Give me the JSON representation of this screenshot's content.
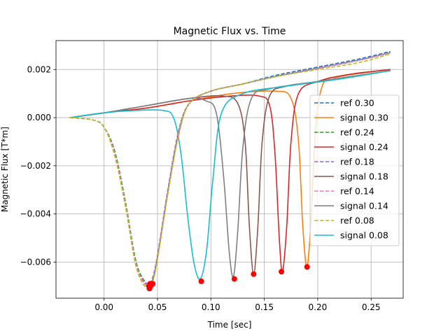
{
  "chart_data": {
    "type": "line",
    "title": "Magnetic Flux vs. Time",
    "xlabel": "Time [sec]",
    "ylabel": "Magnetic Flux [T*m]",
    "xlim": [
      -0.045,
      0.28
    ],
    "ylim": [
      -0.0075,
      0.0032
    ],
    "xticks": [
      0.0,
      0.05,
      0.1,
      0.15,
      0.2,
      0.25
    ],
    "xtick_labels": [
      "0.00",
      "0.05",
      "0.10",
      "0.15",
      "0.20",
      "0.25"
    ],
    "yticks": [
      -0.006,
      -0.004,
      -0.002,
      0.0,
      0.002
    ],
    "ytick_labels": [
      "−0.006",
      "−0.004",
      "−0.002",
      "0.000",
      "0.002"
    ],
    "grid": true,
    "legend_position": "center-right",
    "colors": {
      "ref_0.30": "#1f77b4",
      "signal_0.30": "#ff7f0e",
      "ref_0.24": "#2ca02c",
      "signal_0.24": "#d62728",
      "ref_0.18": "#9467bd",
      "signal_0.18": "#8c564b",
      "ref_0.14": "#e377c2",
      "signal_0.14": "#7f7f7f",
      "ref_0.08": "#bcbd22",
      "signal_0.08": "#17becf",
      "markers": "#ff0000"
    },
    "series": [
      {
        "name": "ref 0.30",
        "style": "dashed",
        "color": "#1f77b4",
        "x": [
          -0.032,
          -0.01,
          0.0,
          0.01,
          0.02,
          0.03,
          0.04,
          0.045,
          0.05,
          0.06,
          0.07,
          0.08,
          0.1,
          0.13,
          0.16,
          0.2,
          0.24,
          0.268
        ],
        "y": [
          0.0,
          -0.0001,
          -0.0004,
          -0.0014,
          -0.0035,
          -0.006,
          -0.007,
          -0.0068,
          -0.0058,
          -0.003,
          -0.0006,
          0.0006,
          0.0011,
          0.0014,
          0.00175,
          0.0021,
          0.00245,
          0.00275
        ]
      },
      {
        "name": "signal 0.30",
        "style": "solid",
        "color": "#ff7f0e",
        "x": [
          -0.032,
          0.0,
          0.04,
          0.08,
          0.12,
          0.16,
          0.175,
          0.182,
          0.186,
          0.19,
          0.194,
          0.198,
          0.205,
          0.22,
          0.25,
          0.268
        ],
        "y": [
          0.0,
          0.0002,
          0.0004,
          0.0007,
          0.001,
          0.0011,
          0.0008,
          -0.001,
          -0.0045,
          -0.0062,
          -0.004,
          -0.0005,
          0.0014,
          0.0017,
          0.0019,
          0.002
        ]
      },
      {
        "name": "ref 0.24",
        "style": "dashed",
        "color": "#2ca02c",
        "x": [
          -0.032,
          -0.01,
          0.0,
          0.01,
          0.02,
          0.03,
          0.04,
          0.045,
          0.05,
          0.06,
          0.07,
          0.08,
          0.1,
          0.13,
          0.16,
          0.2,
          0.24,
          0.268
        ],
        "y": [
          0.0,
          -0.0001,
          -0.0004,
          -0.0014,
          -0.0035,
          -0.006,
          -0.0069,
          -0.0068,
          -0.0058,
          -0.003,
          -0.0006,
          0.0006,
          0.0011,
          0.0014,
          0.0017,
          0.00205,
          0.0024,
          0.0027
        ]
      },
      {
        "name": "signal 0.24",
        "style": "solid",
        "color": "#d62728",
        "x": [
          -0.032,
          0.0,
          0.04,
          0.08,
          0.12,
          0.145,
          0.155,
          0.16,
          0.164,
          0.167,
          0.171,
          0.175,
          0.182,
          0.2,
          0.23,
          0.268
        ],
        "y": [
          0.0,
          0.0002,
          0.0004,
          0.0007,
          0.0009,
          0.0009,
          0.0005,
          -0.0015,
          -0.005,
          -0.0064,
          -0.0045,
          -0.001,
          0.001,
          0.0015,
          0.0018,
          0.002
        ]
      },
      {
        "name": "ref 0.18",
        "style": "dashed",
        "color": "#9467bd",
        "x": [
          -0.032,
          -0.01,
          0.0,
          0.01,
          0.02,
          0.03,
          0.04,
          0.045,
          0.05,
          0.06,
          0.07,
          0.08,
          0.1,
          0.13,
          0.16,
          0.2,
          0.24,
          0.268
        ],
        "y": [
          0.0,
          -0.0001,
          -0.0004,
          -0.0015,
          -0.0036,
          -0.0061,
          -0.0069,
          -0.0067,
          -0.0057,
          -0.0029,
          -0.0005,
          0.0006,
          0.0011,
          0.0014,
          0.0017,
          0.00205,
          0.0024,
          0.0027
        ]
      },
      {
        "name": "signal 0.18",
        "style": "solid",
        "color": "#8c564b",
        "x": [
          -0.032,
          0.0,
          0.04,
          0.08,
          0.11,
          0.125,
          0.132,
          0.136,
          0.14,
          0.144,
          0.148,
          0.155,
          0.17,
          0.2,
          0.268
        ],
        "y": [
          0.0,
          0.0002,
          0.0005,
          0.0008,
          0.0009,
          0.0006,
          -0.001,
          -0.0045,
          -0.0065,
          -0.0045,
          -0.001,
          0.0009,
          0.0013,
          0.0015,
          0.00195
        ]
      },
      {
        "name": "ref 0.14",
        "style": "dashed",
        "color": "#e377c2",
        "x": [
          -0.032,
          -0.01,
          0.0,
          0.01,
          0.02,
          0.03,
          0.04,
          0.045,
          0.05,
          0.06,
          0.07,
          0.08,
          0.1,
          0.13,
          0.16,
          0.2,
          0.24,
          0.268
        ],
        "y": [
          0.0,
          -0.0001,
          -0.0004,
          -0.0015,
          -0.0036,
          -0.0061,
          -0.007,
          -0.0068,
          -0.0058,
          -0.003,
          -0.0006,
          0.0006,
          0.0011,
          0.0014,
          0.0017,
          0.00205,
          0.0024,
          0.0027
        ]
      },
      {
        "name": "signal 0.14",
        "style": "solid",
        "color": "#7f7f7f",
        "x": [
          -0.032,
          0.0,
          0.04,
          0.08,
          0.095,
          0.105,
          0.112,
          0.117,
          0.121,
          0.125,
          0.13,
          0.138,
          0.155,
          0.2,
          0.268
        ],
        "y": [
          0.0,
          0.0002,
          0.0005,
          0.0008,
          0.0007,
          0.0002,
          -0.0025,
          -0.0055,
          -0.0066,
          -0.0048,
          -0.0012,
          0.0008,
          0.0012,
          0.0015,
          0.00195
        ]
      },
      {
        "name": "ref 0.08",
        "style": "dashed",
        "color": "#bcbd22",
        "x": [
          -0.032,
          -0.01,
          0.0,
          0.01,
          0.02,
          0.03,
          0.04,
          0.045,
          0.05,
          0.06,
          0.07,
          0.08,
          0.1,
          0.13,
          0.16,
          0.2,
          0.24,
          0.268
        ],
        "y": [
          0.0,
          -0.0001,
          -0.0004,
          -0.0016,
          -0.0037,
          -0.0062,
          -0.0071,
          -0.0069,
          -0.0059,
          -0.0031,
          -0.0007,
          0.0006,
          0.0011,
          0.0014,
          0.0017,
          0.002,
          0.0023,
          0.00265
        ]
      },
      {
        "name": "signal 0.08",
        "style": "solid",
        "color": "#17becf",
        "x": [
          -0.032,
          0.0,
          0.03,
          0.055,
          0.065,
          0.072,
          0.078,
          0.084,
          0.09,
          0.096,
          0.102,
          0.11,
          0.13,
          0.17,
          0.22,
          0.268
        ],
        "y": [
          0.0,
          0.0002,
          0.0003,
          0.0003,
          0.0,
          -0.0015,
          -0.004,
          -0.006,
          -0.0067,
          -0.0055,
          -0.0025,
          0.0002,
          0.001,
          0.0013,
          0.0016,
          0.00195
        ]
      }
    ],
    "markers": {
      "color": "#ff0000",
      "x": [
        0.043,
        0.0435,
        0.042,
        0.0425,
        0.0455,
        0.091,
        0.122,
        0.14,
        0.166,
        0.19
      ],
      "y": [
        -0.0069,
        -0.007,
        -0.007,
        -0.0071,
        -0.0069,
        -0.0068,
        -0.0067,
        -0.0065,
        -0.0064,
        -0.0062
      ]
    }
  }
}
